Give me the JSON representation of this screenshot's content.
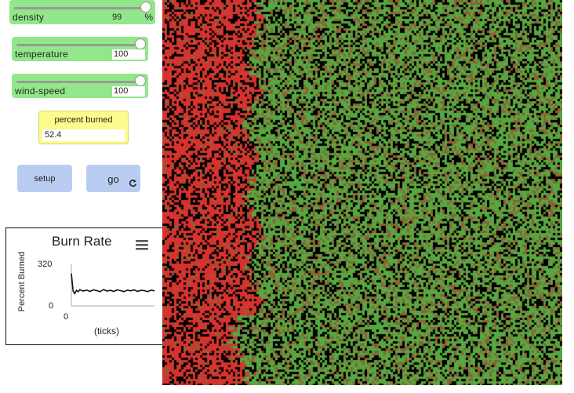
{
  "sliders": [
    {
      "name": "density",
      "value": "99",
      "unit": "%",
      "fraction": 0.99
    },
    {
      "name": "temperature",
      "value": "100",
      "unit": "",
      "fraction": 1.0
    },
    {
      "name": "wind-speed",
      "value": "100",
      "unit": "",
      "fraction": 1.0
    }
  ],
  "monitor": {
    "label": "percent burned",
    "value": "52.4"
  },
  "buttons": {
    "setup": "setup",
    "go": "go"
  },
  "plot": {
    "title": "Burn Rate",
    "ylabel": "Percent Burned",
    "xlabel": "(ticks)",
    "y_max_tick": "320",
    "y_min_tick": "0",
    "x_min_tick": "0"
  },
  "chart_data": {
    "type": "line",
    "title": "Burn Rate",
    "xlabel": "(ticks)",
    "ylabel": "Percent Burned",
    "ylim": [
      0,
      320
    ],
    "x": [
      0,
      2,
      4,
      6,
      8,
      10,
      14,
      18,
      22,
      26,
      30,
      34,
      38,
      42,
      46,
      50,
      54,
      58,
      62,
      66,
      70,
      74,
      78,
      82,
      86,
      90,
      94,
      98
    ],
    "series": [
      {
        "values": [
          250,
          115,
          95,
          120,
          110,
          125,
          115,
          122,
          112,
          124,
          118,
          110,
          126,
          115,
          120,
          112,
          124,
          118,
          110,
          122,
          116,
          124,
          112,
          120,
          118,
          110,
          122,
          116
        ]
      }
    ]
  },
  "colors": {
    "slider_bg": "#92e78a",
    "monitor_bg": "#fcfb8d",
    "button_bg": "#b9cdf2",
    "burned": "#d7322e",
    "tree": "#56a73f",
    "ember": "#8c6236",
    "empty": "#000000"
  },
  "world": {
    "burned_fraction": 0.524
  }
}
